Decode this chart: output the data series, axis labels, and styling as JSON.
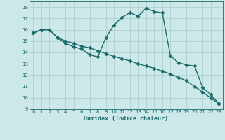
{
  "xlabel": "Humidex (Indice chaleur)",
  "bg_color": "#cde8e8",
  "grid_color": "#aacccc",
  "line_color": "#1a6b6b",
  "xlim": [
    -0.5,
    23.5
  ],
  "ylim": [
    9,
    18.5
  ],
  "yticks": [
    9,
    10,
    11,
    12,
    13,
    14,
    15,
    16,
    17,
    18
  ],
  "xticks": [
    0,
    1,
    2,
    3,
    4,
    5,
    6,
    7,
    8,
    9,
    10,
    11,
    12,
    13,
    14,
    15,
    16,
    17,
    18,
    19,
    20,
    21,
    22,
    23
  ],
  "line1_x": [
    0,
    1,
    2,
    3,
    4,
    5,
    6,
    7,
    8,
    9,
    10,
    11,
    12,
    13,
    14,
    15,
    16,
    17,
    18,
    19,
    20,
    21,
    22,
    23
  ],
  "line1_y": [
    15.7,
    16.0,
    16.0,
    15.3,
    14.8,
    14.5,
    14.3,
    13.8,
    13.6,
    15.3,
    16.4,
    17.1,
    17.5,
    17.2,
    17.9,
    17.6,
    17.5,
    13.7,
    13.1,
    12.9,
    12.8,
    10.9,
    10.3,
    9.5
  ],
  "line2_x": [
    0,
    1,
    2,
    3,
    4,
    5,
    6,
    7,
    8,
    9,
    10,
    11,
    12,
    13,
    14,
    15,
    16,
    17,
    18,
    19,
    20,
    21,
    22,
    23
  ],
  "line2_y": [
    15.7,
    16.0,
    16.0,
    15.3,
    15.0,
    14.8,
    14.55,
    14.4,
    14.15,
    13.9,
    13.65,
    13.45,
    13.25,
    13.0,
    12.8,
    12.6,
    12.35,
    12.1,
    11.8,
    11.5,
    11.0,
    10.5,
    10.0,
    9.5
  ],
  "marker": "D",
  "markersize": 2.5,
  "linewidth": 1.0
}
